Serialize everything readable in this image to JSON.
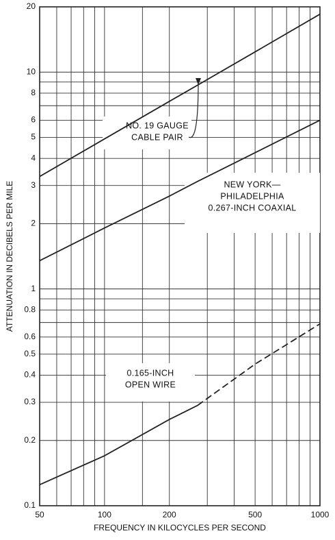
{
  "chart_data": {
    "type": "line",
    "xlabel": "FREQUENCY IN KILOCYCLES PER SECOND",
    "ylabel": "ATTENUATION IN DECIBELS PER MILE",
    "xscale": "log",
    "yscale": "log",
    "grid": true,
    "x": [
      50,
      100,
      200,
      270,
      500,
      1000
    ],
    "series": [
      {
        "color": "#222222",
        "style": "solid",
        "values": [
          3.3,
          4.92,
          7.33,
          8.7,
          12.4,
          18.5
        ]
      },
      {
        "color": "#222222",
        "style": "solid",
        "values": [
          1.35,
          1.91,
          2.68,
          3.13,
          4.25,
          6.0
        ]
      },
      {
        "color": "#222222",
        "style": "solid",
        "values": [
          0.125,
          0.17,
          0.25,
          0.29,
          null,
          null
        ]
      },
      {
        "color": "#222222",
        "style": "dashed",
        "values": [
          null,
          null,
          null,
          0.29,
          0.45,
          0.69
        ]
      }
    ],
    "xlim": [
      50,
      1000
    ],
    "ylim": [
      0.1,
      20
    ],
    "xticks": [
      50,
      100,
      200,
      500,
      1000
    ],
    "minor_xticks": [
      60,
      70,
      80,
      90,
      150,
      300,
      400,
      600,
      700,
      800,
      900
    ],
    "yticks": [
      0.1,
      0.2,
      0.3,
      0.4,
      0.5,
      0.6,
      0.8,
      1,
      2,
      3,
      4,
      5,
      6,
      8,
      10,
      20
    ],
    "minor_yticks": [
      0.7,
      0.9,
      7,
      9
    ],
    "annotations": [
      {
        "lines": [
          "NO. 19 GAUGE",
          "CABLE PAIR"
        ]
      },
      {
        "lines": [
          "NEW YORK—",
          "PHILADELPHIA",
          "0.267-INCH COAXIAL"
        ]
      },
      {
        "lines": [
          "0.165-INCH",
          "OPEN WIRE"
        ]
      }
    ]
  }
}
